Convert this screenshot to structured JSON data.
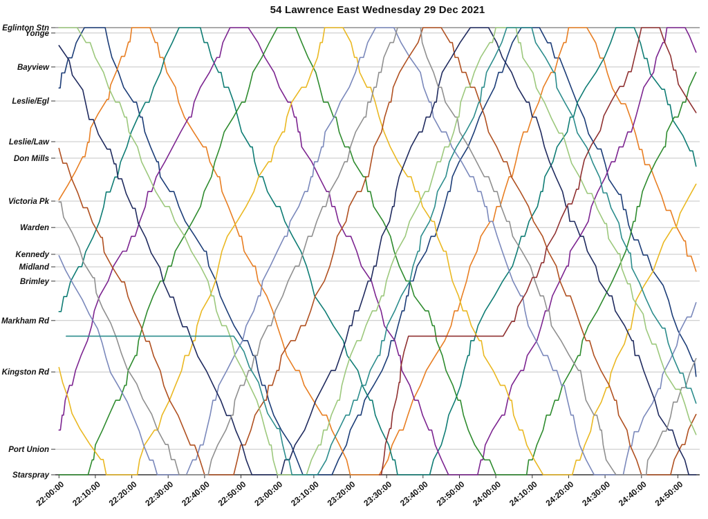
{
  "title": "54 Lawrence East Wednesday 29 Dec 2021",
  "chart_data": {
    "type": "line",
    "title": "54 Lawrence East Wednesday 29 Dec 2021",
    "description": "Time-distance (Marey) diagram of bus trips; x axis is time of day, y axis is position along the route from Eglinton Stn (top) to Starspray (bottom).",
    "grid": "horizontal-only",
    "legend": "none",
    "x_axis": {
      "label": "",
      "tick_interval_minutes": 10,
      "range_minutes": [
        -1,
        176
      ],
      "ticks": [
        "22:00:00",
        "22:10:00",
        "22:20:00",
        "22:30:00",
        "22:40:00",
        "22:50:00",
        "23:00:00",
        "23:10:00",
        "23:20:00",
        "23:30:00",
        "23:40:00",
        "23:50:00",
        "24:00:00",
        "24:10:00",
        "24:20:00",
        "24:30:00",
        "24:40:00",
        "24:50:00"
      ]
    },
    "y_axis": {
      "label": "",
      "stations": [
        {
          "name": "Eglinton Stn",
          "d": 0.0
        },
        {
          "name": "Yonge",
          "d": 0.012
        },
        {
          "name": "Bayview",
          "d": 0.088
        },
        {
          "name": "Leslie/Egl",
          "d": 0.164
        },
        {
          "name": "Leslie/Law",
          "d": 0.255
        },
        {
          "name": "Don Mills",
          "d": 0.292
        },
        {
          "name": "Victoria Pk",
          "d": 0.388
        },
        {
          "name": "Warden",
          "d": 0.447
        },
        {
          "name": "Kennedy",
          "d": 0.507
        },
        {
          "name": "Midland",
          "d": 0.535
        },
        {
          "name": "Brimley",
          "d": 0.567
        },
        {
          "name": "Markham Rd",
          "d": 0.655
        },
        {
          "name": "Kingston Rd",
          "d": 0.77
        },
        {
          "name": "Port Union",
          "d": 0.943
        },
        {
          "name": "Starspray",
          "d": 1.0
        }
      ]
    },
    "series": [
      {
        "name": "vehicle-1",
        "color": "#1b3c77",
        "points": [
          [
            0,
            0.135
          ],
          [
            7,
            0
          ],
          [
            12,
            0
          ],
          [
            67,
            1
          ],
          [
            75,
            1
          ],
          [
            127,
            0
          ],
          [
            132,
            0
          ],
          [
            175,
            0.78
          ]
        ]
      },
      {
        "name": "vehicle-2",
        "color": "#e87e22",
        "points": [
          [
            0,
            0.385
          ],
          [
            20,
            0
          ],
          [
            25,
            0
          ],
          [
            80,
            1
          ],
          [
            88,
            1
          ],
          [
            140,
            0
          ],
          [
            145,
            0
          ],
          [
            175,
            0.545
          ]
        ]
      },
      {
        "name": "vehicle-3",
        "color": "#0e7c74",
        "points": [
          [
            0,
            0.635
          ],
          [
            33,
            0
          ],
          [
            38,
            0
          ],
          [
            93,
            1
          ],
          [
            101,
            1
          ],
          [
            153,
            0
          ],
          [
            158,
            0
          ],
          [
            175,
            0.31
          ]
        ]
      },
      {
        "name": "vehicle-4",
        "color": "#7c2490",
        "points": [
          [
            0,
            0.9
          ],
          [
            47,
            0
          ],
          [
            52,
            0
          ],
          [
            107,
            1
          ],
          [
            115,
            1
          ],
          [
            167,
            0
          ],
          [
            172,
            0
          ],
          [
            175,
            0.055
          ]
        ]
      },
      {
        "name": "vehicle-5",
        "color": "#2e8b2e",
        "points": [
          [
            0,
            1
          ],
          [
            8,
            1
          ],
          [
            60,
            0
          ],
          [
            65,
            0
          ],
          [
            120,
            1
          ],
          [
            128,
            1
          ],
          [
            175,
            0.1
          ]
        ]
      },
      {
        "name": "vehicle-6",
        "color": "#eab822",
        "points": [
          [
            0,
            0.76
          ],
          [
            13,
            1
          ],
          [
            21,
            1
          ],
          [
            73,
            0
          ],
          [
            78,
            0
          ],
          [
            133,
            1
          ],
          [
            141,
            1
          ],
          [
            175,
            0.35
          ]
        ]
      },
      {
        "name": "vehicle-7",
        "color": "#7a88bb",
        "points": [
          [
            0,
            0.51
          ],
          [
            27,
            1
          ],
          [
            35,
            1
          ],
          [
            87,
            0
          ],
          [
            92,
            0
          ],
          [
            147,
            1
          ],
          [
            155,
            1
          ],
          [
            175,
            0.615
          ]
        ]
      },
      {
        "name": "vehicle-8",
        "color": "#b05020",
        "points": [
          [
            0,
            0.27
          ],
          [
            40,
            1
          ],
          [
            48,
            1
          ],
          [
            100,
            0
          ],
          [
            105,
            0
          ],
          [
            160,
            1
          ],
          [
            168,
            1
          ],
          [
            175,
            0.865
          ]
        ]
      },
      {
        "name": "vehicle-9",
        "color": "#1f2a5e",
        "points": [
          [
            0,
            0.04
          ],
          [
            53,
            1
          ],
          [
            61,
            1
          ],
          [
            113,
            0
          ],
          [
            118,
            0
          ],
          [
            173,
            1
          ],
          [
            175,
            1
          ]
        ]
      },
      {
        "name": "vehicle-10",
        "color": "#8f8f8f",
        "points": [
          [
            0,
            0.39
          ],
          [
            33,
            1
          ],
          [
            41,
            1
          ],
          [
            93,
            0
          ],
          [
            99,
            0
          ],
          [
            153,
            1
          ],
          [
            161,
            1
          ],
          [
            175,
            0.74
          ]
        ]
      },
      {
        "name": "vehicle-11",
        "color": "#9cc87c",
        "points": [
          [
            0,
            0
          ],
          [
            5,
            0
          ],
          [
            60,
            1
          ],
          [
            68,
            1
          ],
          [
            120,
            0
          ],
          [
            125,
            0
          ],
          [
            175,
            0.91
          ]
        ]
      },
      {
        "name": "vehicle-12",
        "color": "#2b8c8c",
        "points": [
          [
            2,
            0.69
          ],
          [
            48,
            0.69
          ],
          [
            64,
            1
          ],
          [
            71,
            1
          ],
          [
            123,
            0
          ],
          [
            129,
            0
          ],
          [
            175,
            0.84
          ]
        ]
      },
      {
        "name": "vehicle-13",
        "color": "#8f3030",
        "points": [
          [
            88,
            1
          ],
          [
            96,
            0.69
          ],
          [
            122,
            0.69
          ],
          [
            160,
            0
          ],
          [
            165,
            0
          ],
          [
            175,
            0.19
          ]
        ]
      }
    ]
  }
}
